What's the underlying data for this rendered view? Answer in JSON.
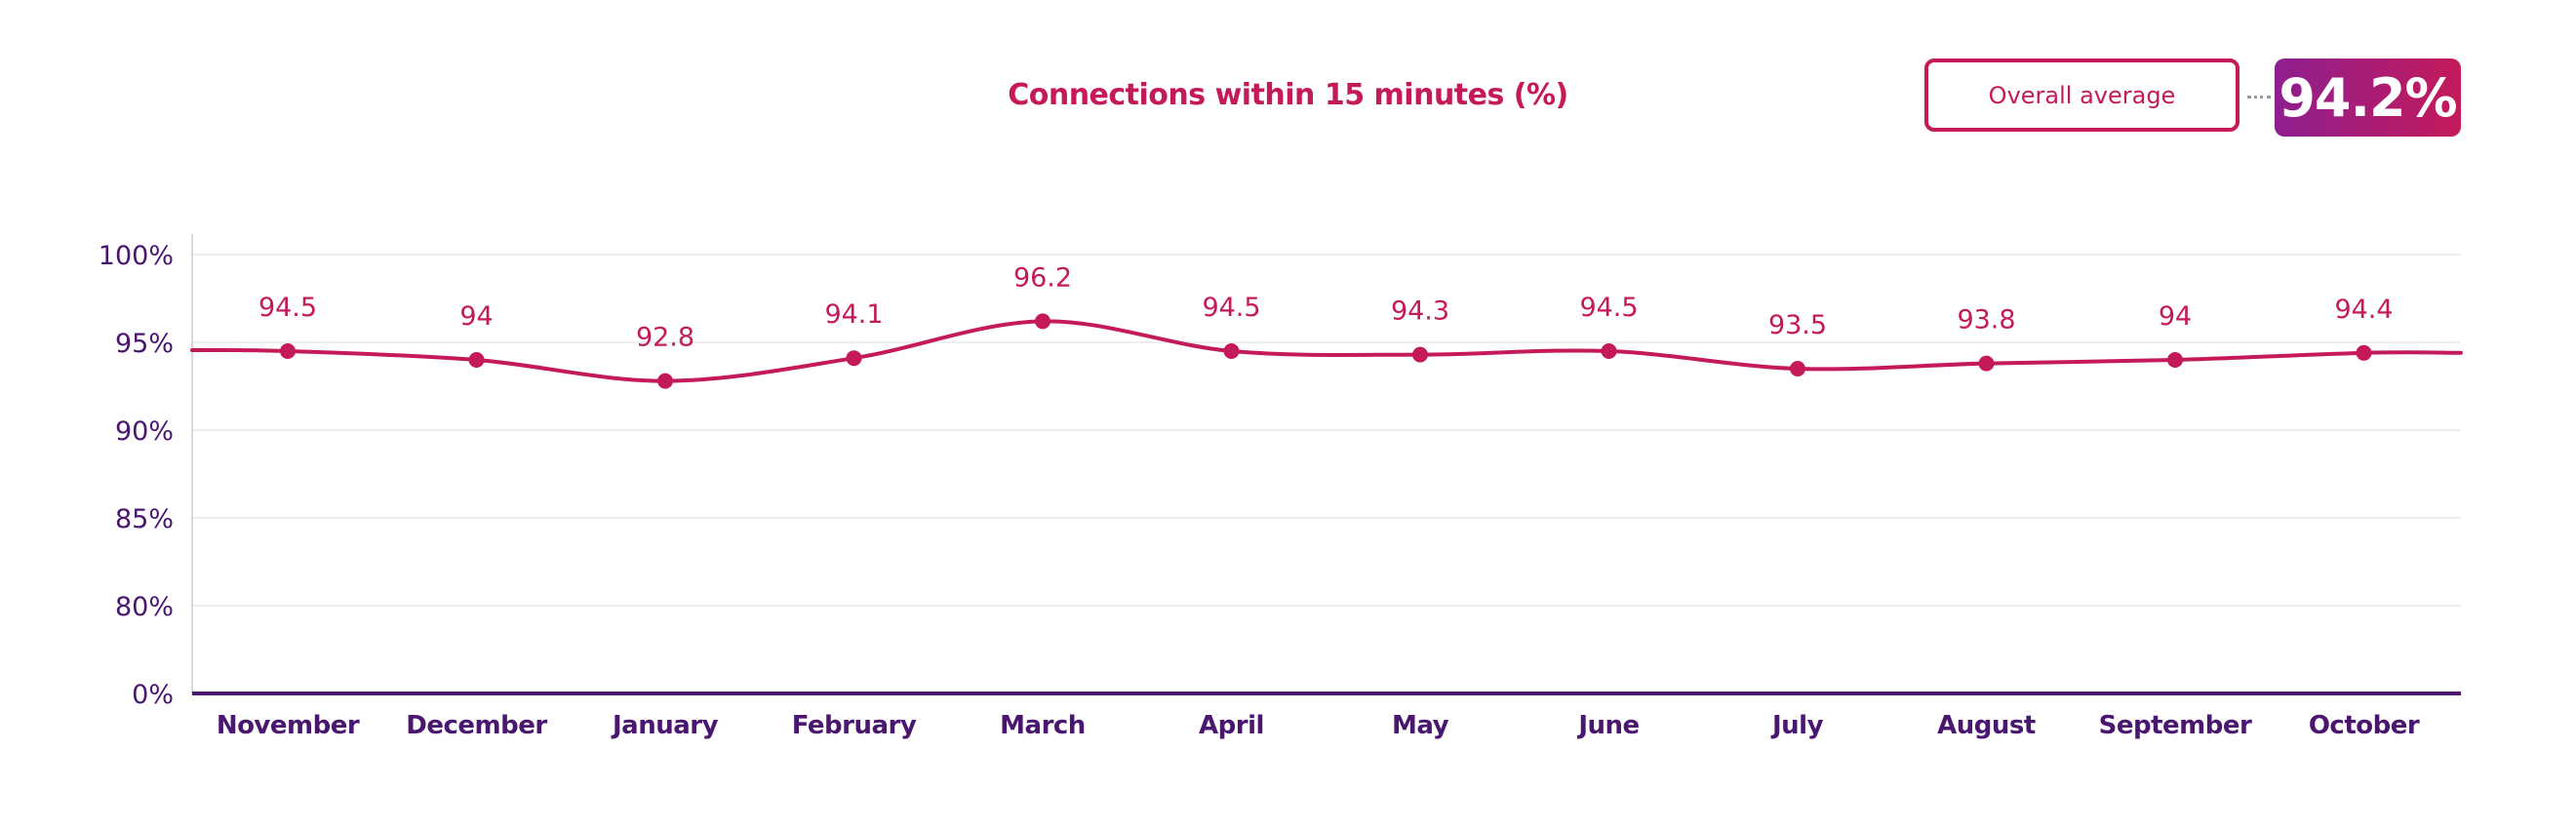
{
  "header": {
    "title": "Connections within 15 minutes (%)",
    "average_label": "Overall average",
    "average_value": "94.2%"
  },
  "colors": {
    "line": "#c41a5a",
    "axis": "#4a1670",
    "axis_text": "#4a1670",
    "grid": "#eeeeee",
    "accent_gradient_start": "#8e1f8f",
    "accent_gradient_end": "#c41a5a"
  },
  "chart_data": {
    "type": "line",
    "title": "Connections within 15 minutes (%)",
    "xlabel": "",
    "ylabel": "",
    "categories": [
      "November",
      "December",
      "January",
      "February",
      "March",
      "April",
      "May",
      "June",
      "July",
      "August",
      "September",
      "October"
    ],
    "series": [
      {
        "values": [
          94.5,
          94,
          92.8,
          94.1,
          96.2,
          94.5,
          94.3,
          94.5,
          93.5,
          93.8,
          94,
          94.4
        ],
        "labels": [
          "94.5",
          "94",
          "92.8",
          "94.1",
          "96.2",
          "94.5",
          "94.3",
          "94.5",
          "93.5",
          "93.8",
          "94",
          "94.4"
        ]
      }
    ],
    "y_ticks": [
      0,
      80,
      85,
      90,
      95,
      100
    ],
    "y_tick_labels": [
      "0%",
      "80%",
      "85%",
      "90%",
      "95%",
      "100%"
    ],
    "y_axis_break": "between 0% and 80%",
    "ylim": [
      0,
      100
    ],
    "grid": true,
    "legend": "none"
  }
}
